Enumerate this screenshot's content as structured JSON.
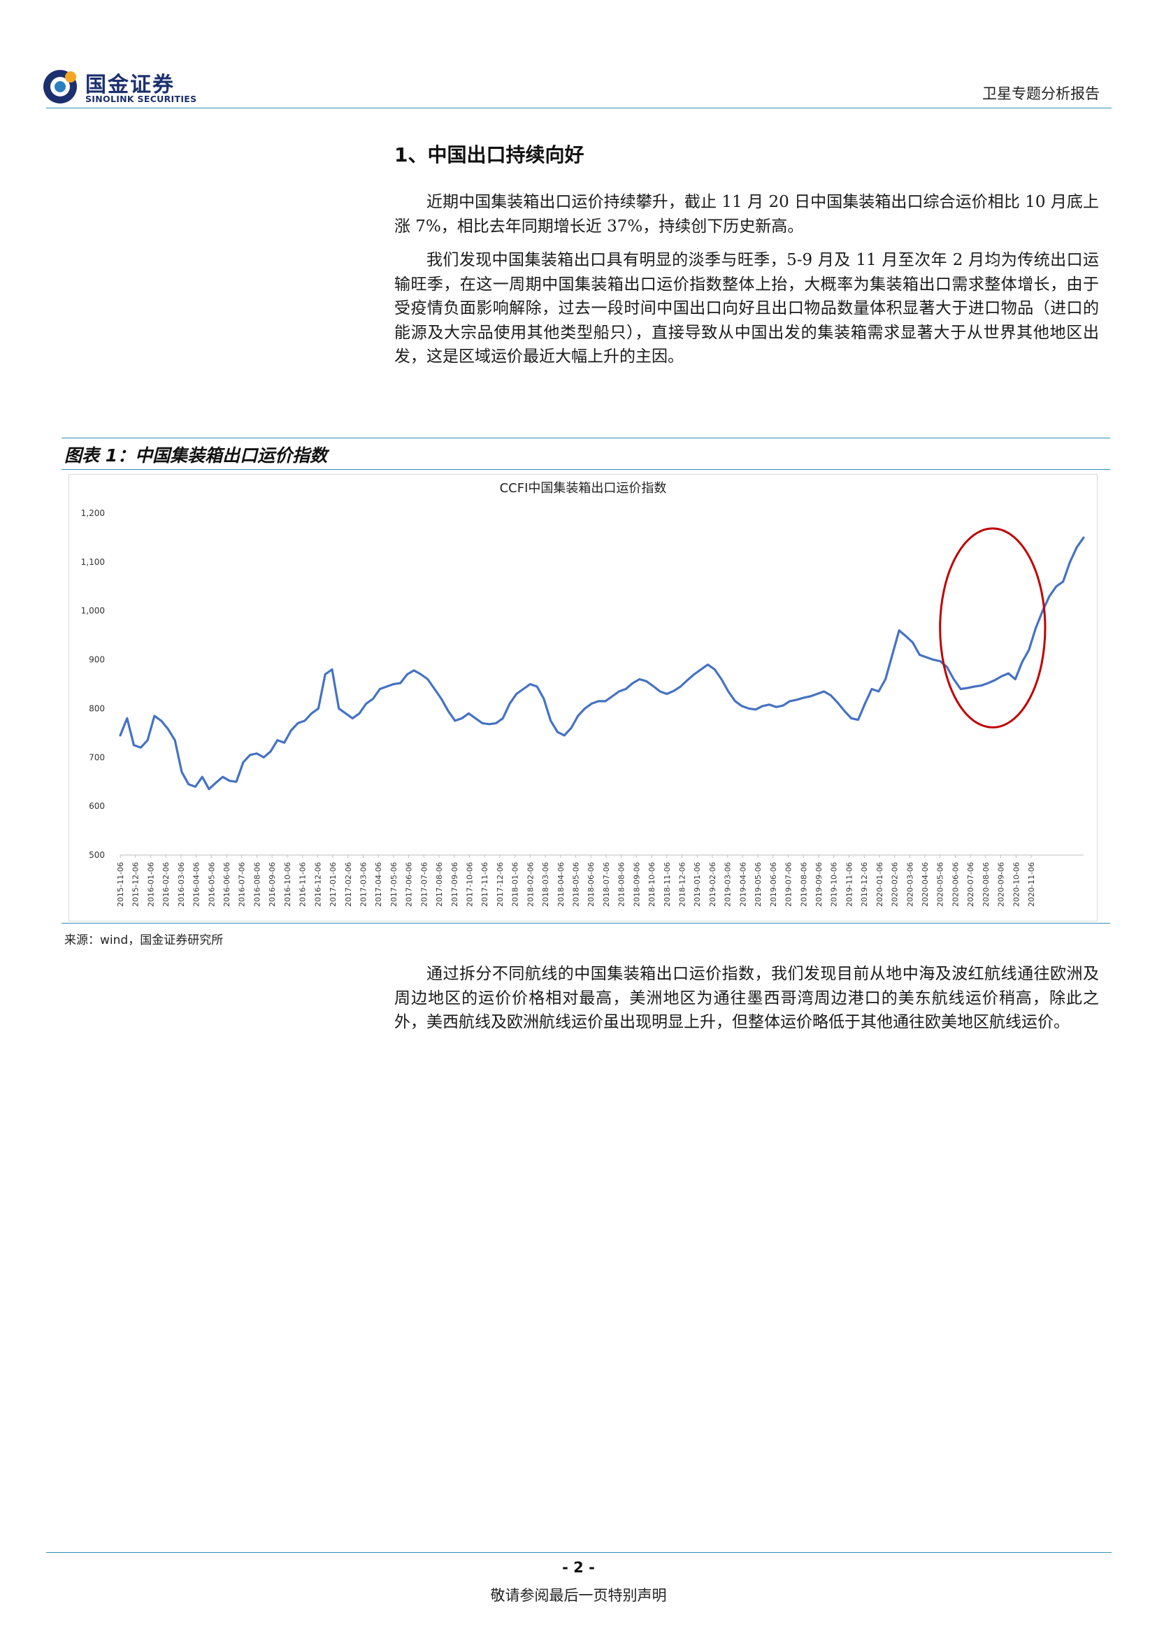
{
  "header": {
    "logo_cn": "国金证券",
    "logo_en": "SINOLINK SECURITIES",
    "report_type": "卫星专题分析报告",
    "colors": {
      "brand_blue": "#1c2f6e",
      "logo_accent": "#f5a623",
      "rule": "#2e8fb8"
    }
  },
  "section": {
    "title": "1、中国出口持续向好",
    "paragraphs": [
      "近期中国集装箱出口运价持续攀升，截止 11 月 20 日中国集装箱出口综合运价相比 10 月底上涨 7%，相比去年同期增长近 37%，持续创下历史新高。",
      "我们发现中国集装箱出口具有明显的淡季与旺季，5-9 月及 11 月至次年 2 月均为传统出口运输旺季，在这一周期中国集装箱出口运价指数整体上抬，大概率为集装箱出口需求整体增长，由于受疫情负面影响解除，过去一段时间中国出口向好且出口物品数量体积显著大于进口物品（进口的能源及大宗品使用其他类型船只），直接导致从中国出发的集装箱需求显著大于从世界其他地区出发，这是区域运价最近大幅上升的主因。",
      "通过拆分不同航线的中国集装箱出口运价指数，我们发现目前从地中海及波红航线通往欧洲及周边地区的运价价格相对最高，美洲地区为通往墨西哥湾周边港口的美东航线运价稍高，除此之外，美西航线及欧洲航线运价虽出现明显上升，但整体运价略低于其他通往欧美地区航线运价。"
    ]
  },
  "figure": {
    "caption": "图表 1：中国集装箱出口运价指数",
    "source": "来源：wind，国金证券研究所"
  },
  "chart_data": {
    "type": "line",
    "title": "CCFI中国集装箱出口运价指数",
    "xlabel": "",
    "ylabel": "",
    "ylim": [
      500,
      1200
    ],
    "y_ticks": [
      500,
      600,
      700,
      800,
      900,
      1000,
      1100,
      1200
    ],
    "y_tick_labels": [
      "500",
      "600",
      "700",
      "800",
      "900",
      "1,000",
      "1,100",
      "1,200"
    ],
    "x_tick_labels": [
      "2015-11-06",
      "2015-12-06",
      "2016-01-06",
      "2016-02-06",
      "2016-03-06",
      "2016-04-06",
      "2016-05-06",
      "2016-06-06",
      "2016-07-06",
      "2016-08-06",
      "2016-09-06",
      "2016-10-06",
      "2016-11-06",
      "2016-12-06",
      "2017-01-06",
      "2017-02-06",
      "2017-03-06",
      "2017-04-06",
      "2017-05-06",
      "2017-06-06",
      "2017-07-06",
      "2017-08-06",
      "2017-09-06",
      "2017-10-06",
      "2017-11-06",
      "2017-12-06",
      "2018-01-06",
      "2018-02-06",
      "2018-03-06",
      "2018-04-06",
      "2018-05-06",
      "2018-06-06",
      "2018-07-06",
      "2018-08-06",
      "2018-09-06",
      "2018-10-06",
      "2018-11-06",
      "2018-12-06",
      "2019-01-06",
      "2019-02-06",
      "2019-03-06",
      "2019-04-06",
      "2019-05-06",
      "2019-06-06",
      "2019-07-06",
      "2019-08-06",
      "2019-09-06",
      "2019-10-06",
      "2019-11-06",
      "2019-12-06",
      "2020-01-06",
      "2020-02-06",
      "2020-03-06",
      "2020-04-06",
      "2020-05-06",
      "2020-06-06",
      "2020-07-06",
      "2020-08-06",
      "2020-09-06",
      "2020-10-06",
      "2020-11-06"
    ],
    "grid": false,
    "legend": "none",
    "colors": {
      "line": "#4472c4",
      "highlight": "#c00000"
    },
    "series": [
      {
        "values": [
          745,
          780,
          725,
          720,
          735,
          785,
          775,
          758,
          735,
          670,
          645,
          640,
          660,
          635,
          648,
          660,
          652,
          650,
          690,
          705,
          708,
          700,
          712,
          735,
          730,
          755,
          770,
          775,
          790,
          800,
          870,
          880,
          800,
          790,
          780,
          790,
          810,
          820,
          840,
          845,
          850,
          852,
          870,
          878,
          870,
          860,
          840,
          820,
          795,
          775,
          780,
          790,
          780,
          770,
          768,
          770,
          780,
          810,
          830,
          840,
          850,
          845,
          820,
          775,
          752,
          745,
          760,
          785,
          800,
          810,
          815,
          815,
          825,
          835,
          840,
          852,
          860,
          856,
          846,
          835,
          830,
          836,
          845,
          858,
          870,
          880,
          890,
          880,
          860,
          835,
          815,
          805,
          800,
          798,
          805,
          808,
          803,
          806,
          815,
          818,
          822,
          825,
          830,
          835,
          827,
          812,
          795,
          780,
          777,
          810,
          840,
          835,
          860,
          910,
          960,
          948,
          935,
          910,
          905,
          900,
          897,
          885,
          860,
          840,
          842,
          845,
          847,
          852,
          858,
          866,
          872,
          860,
          895,
          920,
          965,
          1000,
          1030,
          1050,
          1060,
          1100,
          1130,
          1150
        ]
      }
    ],
    "annotations": [
      {
        "type": "ellipse",
        "label": "",
        "x_range": [
          "2020-05-06",
          "2020-11-06"
        ],
        "y_range": [
          790,
          1140
        ]
      }
    ]
  }
}
